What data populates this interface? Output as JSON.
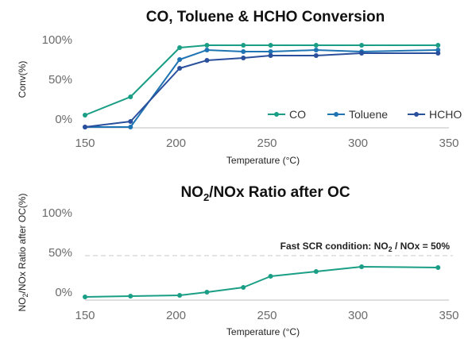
{
  "chart_data": [
    {
      "type": "line",
      "title": "CO, Toluene & HCHO Conversion",
      "xlabel": "Temperature (°C)",
      "ylabel": "Conv(%)",
      "xlim": [
        150,
        350
      ],
      "ylim": [
        0,
        100
      ],
      "x_ticks": [
        150,
        200,
        250,
        300,
        350
      ],
      "y_ticks": [
        "0%",
        "50%",
        "100%"
      ],
      "grid": false,
      "legend": "bottom-right",
      "series": [
        {
          "name": "CO",
          "color": "#1a9e86",
          "x": [
            150,
            175,
            202,
            217,
            237,
            252,
            277,
            302,
            344
          ],
          "y": [
            5,
            28,
            90,
            93,
            93,
            93,
            93,
            93,
            93
          ]
        },
        {
          "name": "Toluene",
          "color": "#1f74b3",
          "x": [
            150,
            175,
            202,
            217,
            237,
            252,
            277,
            302,
            344
          ],
          "y": [
            -10,
            -10,
            75,
            87,
            85,
            85,
            87,
            85,
            87
          ]
        },
        {
          "name": "HCHO",
          "color": "#2a4f9c",
          "x": [
            150,
            175,
            202,
            217,
            237,
            252,
            277,
            302,
            344
          ],
          "y": [
            -10,
            -3,
            64,
            74,
            77,
            80,
            80,
            83,
            83
          ]
        }
      ]
    },
    {
      "type": "line",
      "title_parts": [
        "NO",
        "2",
        "/NOx Ratio after OC"
      ],
      "xlabel": "Temperature (°C)",
      "ylabel_parts": [
        "NO",
        "2",
        "/NOx Ratio after OC(%)"
      ],
      "xlim": [
        150,
        350
      ],
      "ylim": [
        0,
        100
      ],
      "x_ticks": [
        150,
        200,
        250,
        300,
        350
      ],
      "y_ticks": [
        "0%",
        "50%",
        "100%"
      ],
      "grid": false,
      "annotation": {
        "text_parts": [
          "Fast SCR condition: NO",
          "2",
          " / NOx = 50%"
        ],
        "y": 46
      },
      "series": [
        {
          "color": "#1a9e86",
          "x": [
            150,
            175,
            202,
            217,
            237,
            252,
            277,
            302,
            344
          ],
          "y": [
            -6,
            -5,
            -4,
            0,
            6,
            20,
            26,
            32,
            31
          ]
        }
      ]
    }
  ]
}
